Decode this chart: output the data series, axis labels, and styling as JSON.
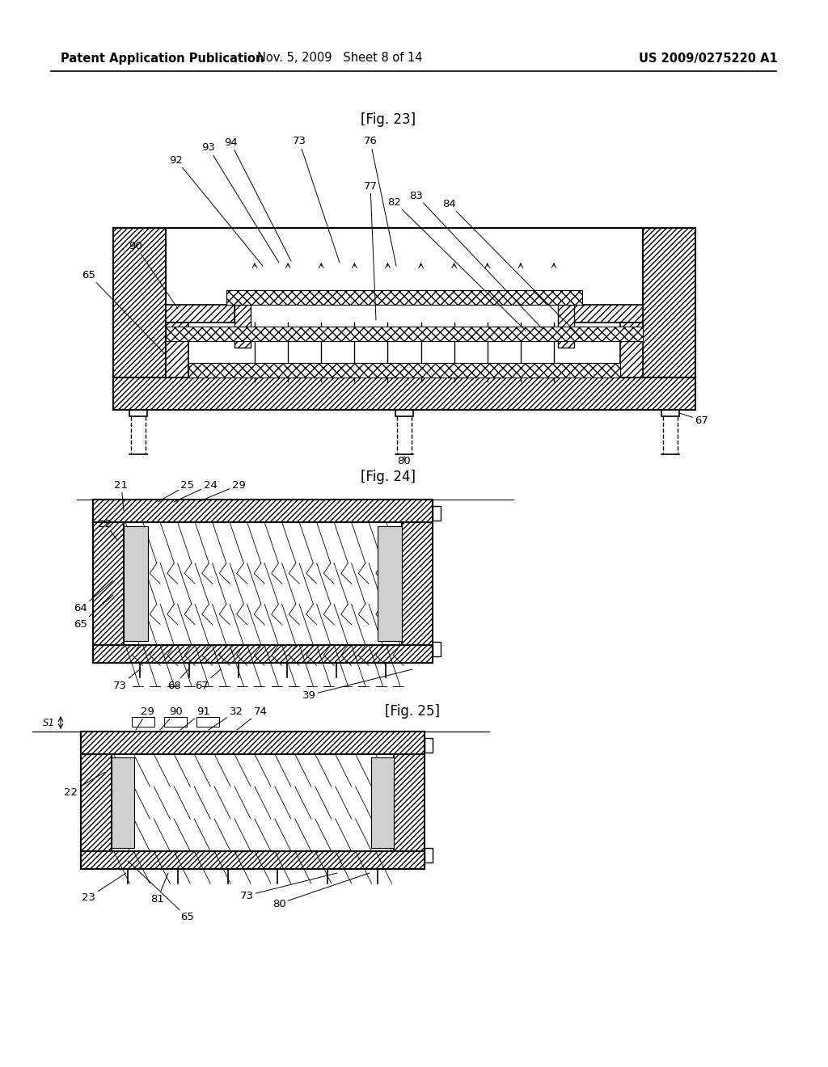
{
  "header_left": "Patent Application Publication",
  "header_mid": "Nov. 5, 2009   Sheet 8 of 14",
  "header_right": "US 2009/0275220 A1",
  "fig23_label": "[Fig. 23]",
  "fig24_label": "[Fig. 24]",
  "fig25_label": "[Fig. 25]",
  "background": "#ffffff",
  "line_color": "#000000",
  "header_fontsize": 10.5,
  "fig_label_fontsize": 12,
  "ann_fontsize": 9.5
}
